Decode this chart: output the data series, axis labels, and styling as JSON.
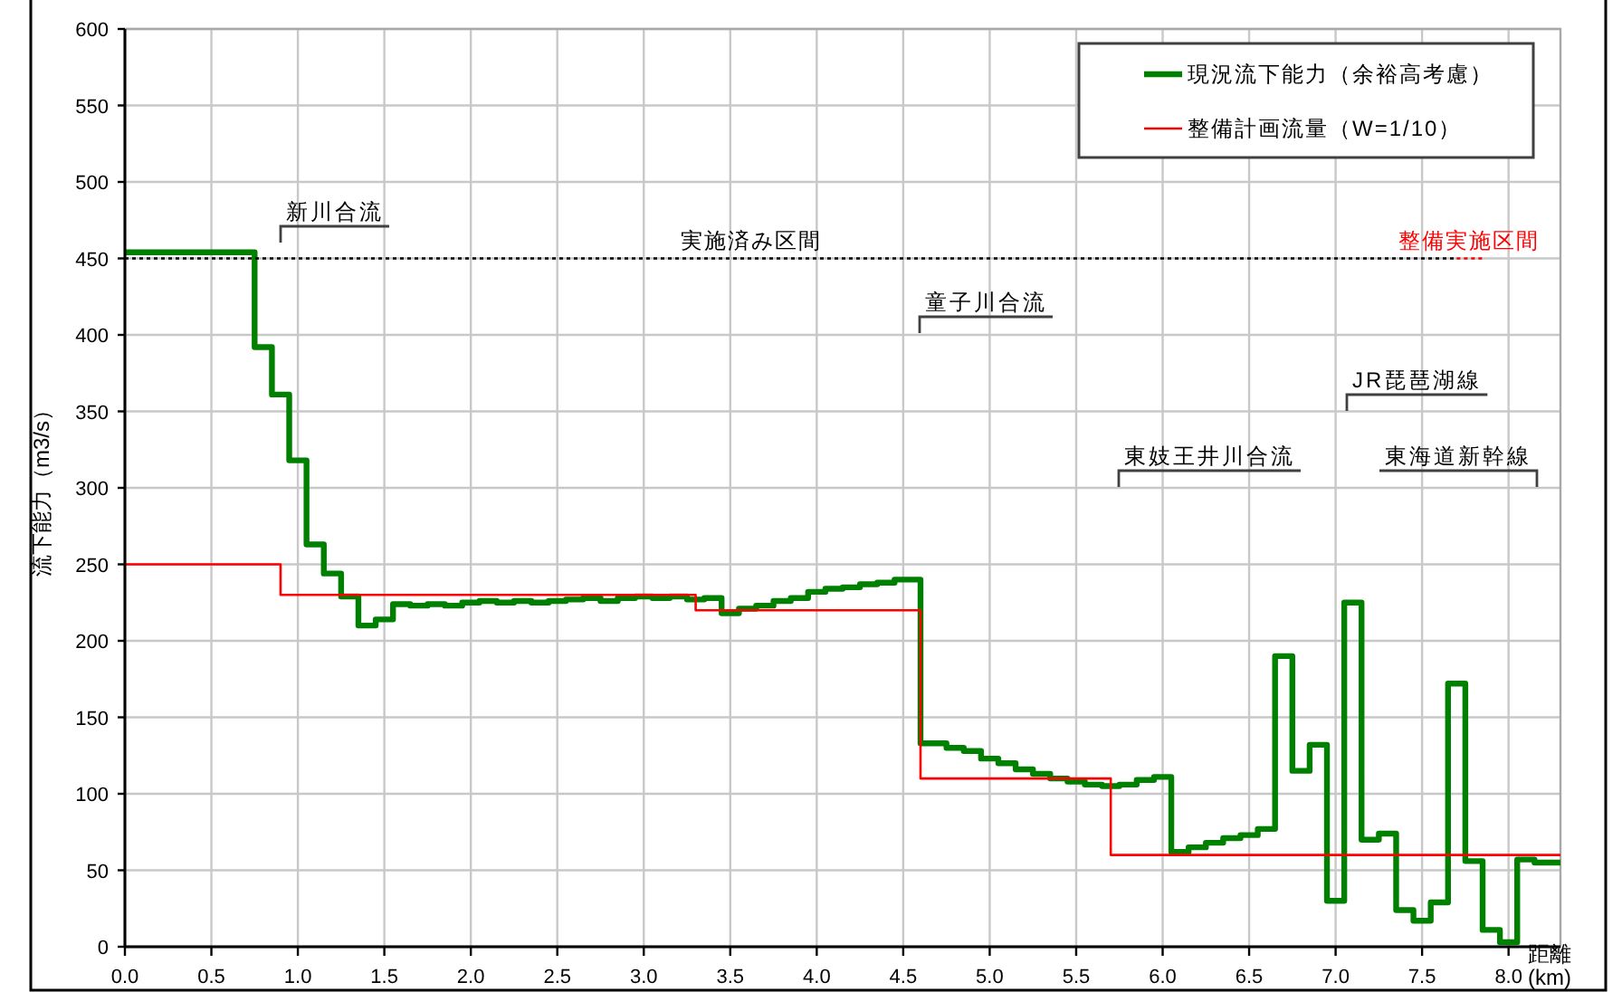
{
  "chart_data": {
    "type": "step",
    "xlabel": "距離 (km)",
    "ylabel": "流下能力（m3/s）",
    "xlim": [
      0,
      8.3
    ],
    "ylim": [
      0,
      600
    ],
    "xticks": [
      {
        "value": 0,
        "label": "0.0"
      },
      0.5,
      {
        "value": 1,
        "label": "1.0"
      },
      1.5,
      {
        "value": 2,
        "label": "2.0"
      },
      2.5,
      {
        "value": 3,
        "label": "3.0"
      },
      3.5,
      {
        "value": 4,
        "label": "4.0"
      },
      4.5,
      {
        "value": 5,
        "label": "5.0"
      },
      5.5,
      {
        "value": 6,
        "label": "6.0"
      },
      6.5,
      {
        "value": 7,
        "label": "7.0"
      },
      7.5,
      {
        "value": 8,
        "label": "8.0"
      }
    ],
    "yticks": [
      0,
      50,
      100,
      150,
      200,
      250,
      300,
      350,
      400,
      450,
      500,
      550,
      600
    ],
    "grid": true,
    "legend": "top right",
    "series": [
      {
        "name": "現況流下能力（余裕高考慮）",
        "color": "#008000",
        "x": [
          0,
          0.75,
          0.85,
          0.95,
          1.05,
          1.15,
          1.25,
          1.35,
          1.45,
          1.55,
          1.65,
          1.75,
          1.85,
          1.95,
          2.05,
          2.15,
          2.25,
          2.35,
          2.45,
          2.55,
          2.65,
          2.75,
          2.85,
          2.95,
          3.05,
          3.15,
          3.25,
          3.35,
          3.45,
          3.55,
          3.65,
          3.75,
          3.85,
          3.95,
          4.05,
          4.15,
          4.25,
          4.35,
          4.45,
          4.6,
          4.75,
          4.85,
          4.95,
          5.05,
          5.15,
          5.25,
          5.35,
          5.45,
          5.55,
          5.65,
          5.75,
          5.85,
          5.95,
          6.05,
          6.15,
          6.25,
          6.35,
          6.45,
          6.55,
          6.65,
          6.75,
          6.85,
          6.95,
          7.05,
          7.15,
          7.25,
          7.35,
          7.45,
          7.55,
          7.65,
          7.75,
          7.85,
          7.95,
          8.05,
          8.15,
          8.3
        ],
        "values": [
          454,
          392,
          361,
          318,
          263,
          244,
          229,
          210,
          214,
          224,
          223,
          224,
          223,
          225,
          226,
          225,
          226,
          225,
          226,
          227,
          228,
          226,
          228,
          229,
          228,
          229,
          227,
          228,
          218,
          221,
          223,
          226,
          228,
          232,
          234,
          235,
          237,
          238,
          240,
          133,
          130,
          128,
          123,
          120,
          116,
          113,
          110,
          108,
          106,
          105,
          106,
          109,
          111,
          62,
          65,
          68,
          71,
          73,
          77,
          190,
          115,
          132,
          30,
          225,
          70,
          74,
          24,
          17,
          29,
          172,
          56,
          11,
          3,
          57,
          55,
          55
        ]
      },
      {
        "name": "整備計画流量（W=1/10）",
        "color": "#ff0000",
        "x": [
          0,
          0.9,
          3.3,
          4.6,
          5.7,
          8.3
        ],
        "values": [
          250,
          230,
          220,
          110,
          60,
          60
        ]
      },
      {
        "type": "line",
        "color": "#000000",
        "line_style": "dotted",
        "x": [
          0,
          7.7
        ],
        "values": [
          450,
          450
        ]
      },
      {
        "type": "line",
        "color": "#ff0000",
        "line_style": "dotted",
        "x": [
          7.7,
          7.85
        ],
        "values": [
          450,
          450
        ]
      }
    ],
    "annotations": [
      "新川合流",
      {
        "text": "実施済み区間",
        "x": 3.62,
        "y": 450
      },
      {
        "text": "整備実施区間",
        "x": 7.77,
        "y": 450
      },
      "童子川合流",
      "東妓王井川合流",
      "JR琵琶湖線",
      "東海道新幹線"
    ]
  }
}
